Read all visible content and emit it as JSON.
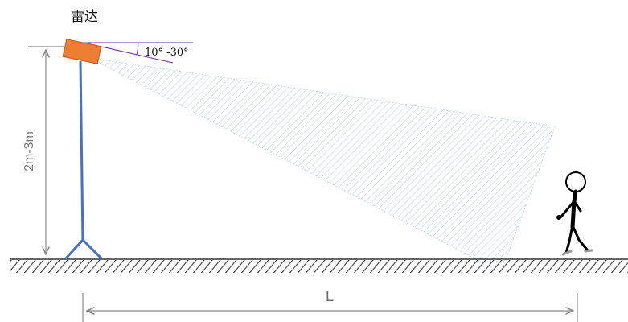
{
  "radar_label": "雷达",
  "angle_label": "10° -30°",
  "height_label": "2m-3m",
  "distance_label": "L",
  "colors": {
    "radar_body": "#ED7D31",
    "pole": "#4472C4",
    "beam_hatch": "#BDD0EA",
    "beam_edge": "#C9D6EC",
    "angle_lines": "#7030A0",
    "dimension": "#888888",
    "ground": "#333333",
    "person": "#000000"
  }
}
